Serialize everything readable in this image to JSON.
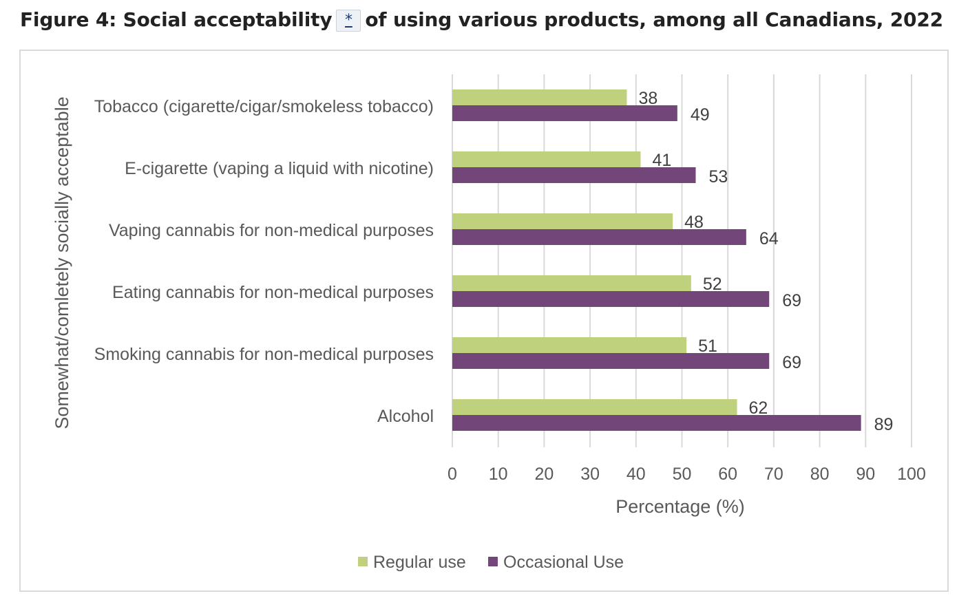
{
  "figure": {
    "title_before": "Figure 4: Social acceptability",
    "footnote_marker": "*",
    "title_after": "of using various products, among all Canadians, 2022"
  },
  "chart_data": {
    "type": "bar",
    "orientation": "horizontal",
    "categories": [
      "Tobacco (cigarette/cigar/smokeless tobacco)",
      "E-cigarette (vaping a liquid with nicotine)",
      "Vaping cannabis for non-medical purposes",
      "Eating cannabis for non-medical purposes",
      "Smoking cannabis for non-medical purposes",
      "Alcohol"
    ],
    "series": [
      {
        "name": "Regular use",
        "color": "#bfd17c",
        "values": [
          38,
          41,
          48,
          52,
          51,
          62
        ]
      },
      {
        "name": "Occasional Use",
        "color": "#73467a",
        "values": [
          49,
          53,
          64,
          69,
          69,
          89
        ]
      }
    ],
    "xlabel": "Percentage (%)",
    "ylabel": "Somewhat/comletely socially acceptable",
    "xlim": [
      0,
      100
    ],
    "xticks": [
      0,
      10,
      20,
      30,
      40,
      50,
      60,
      70,
      80,
      90,
      100
    ],
    "grid": true,
    "legend": "bottom",
    "data_labels": true
  }
}
